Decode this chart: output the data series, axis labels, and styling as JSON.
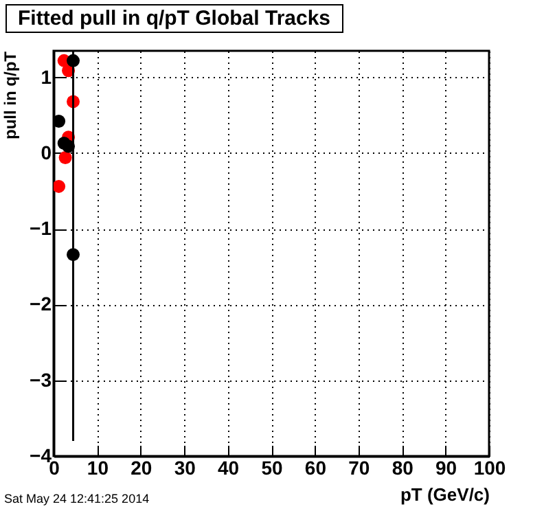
{
  "chart_data": {
    "type": "scatter",
    "title": "Fitted pull in q/pT  Global Tracks",
    "xlabel": "pT (GeV/c)",
    "ylabel": "pull in q/pT",
    "annotations": [
      "Sat May 24 12:41:25 2014"
    ],
    "xlim": [
      0,
      100
    ],
    "xticks": [
      0,
      10,
      20,
      30,
      40,
      50,
      60,
      70,
      80,
      90,
      100
    ],
    "ylim": [
      -4,
      1.35
    ],
    "yticks": [
      -4,
      -3,
      -2,
      -1,
      0,
      1
    ],
    "grid": true,
    "marker": "circle",
    "series": [
      {
        "color": "#ff0000",
        "x": [
          2.4,
          3.4,
          4.5,
          3.4,
          2.7,
          1.2
        ],
        "values": [
          1.22,
          1.09,
          0.68,
          0.21,
          -0.06,
          -0.44
        ]
      },
      {
        "color": "#000000",
        "x": [
          4.5,
          1.2,
          2.4,
          3.4,
          4.5
        ],
        "values": [
          1.22,
          0.42,
          0.13,
          0.09,
          -1.34
        ],
        "errors": [
          null,
          null,
          null,
          null,
          [
            -3.8,
            1.35
          ]
        ]
      }
    ]
  }
}
